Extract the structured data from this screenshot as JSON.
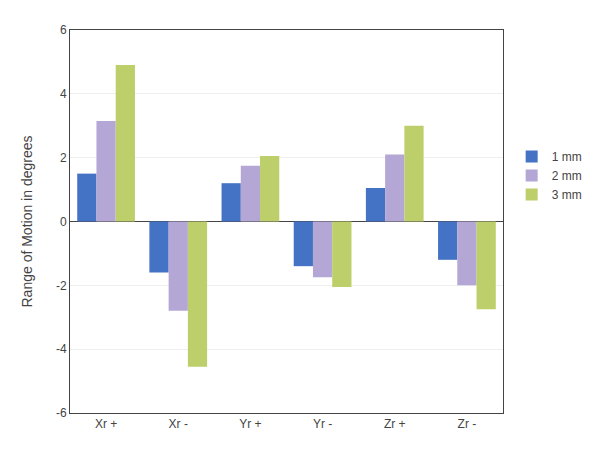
{
  "chart_data": {
    "type": "bar",
    "categories": [
      "Xr +",
      "Xr -",
      "Yr +",
      "Yr -",
      "Zr +",
      "Zr -"
    ],
    "series": [
      {
        "name": "1 mm",
        "color": "#4472C4",
        "values": [
          1.5,
          -1.6,
          1.2,
          -1.4,
          1.05,
          -1.2
        ]
      },
      {
        "name": "2 mm",
        "color": "#B4A7D6",
        "values": [
          3.15,
          -2.8,
          1.75,
          -1.75,
          2.1,
          -2.0
        ]
      },
      {
        "name": "3 mm",
        "color": "#BDCF6A",
        "values": [
          4.9,
          -4.55,
          2.05,
          -2.05,
          3.0,
          -2.75
        ]
      }
    ],
    "ylabel": "Range of Motion in degrees",
    "ylim": [
      -6,
      6
    ],
    "yticks": [
      -6,
      -4,
      -2,
      0,
      2,
      4,
      6
    ],
    "grid": true,
    "legend": "right"
  }
}
